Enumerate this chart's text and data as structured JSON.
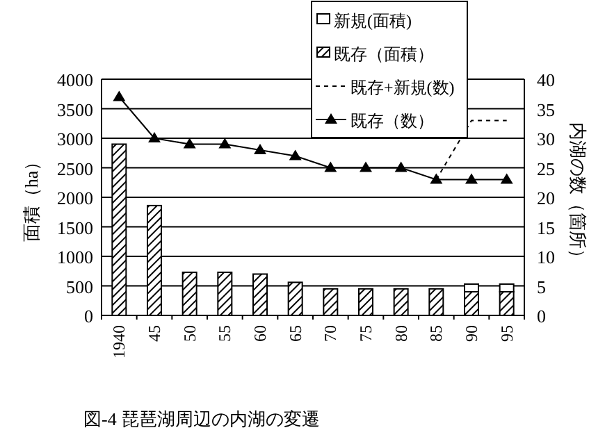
{
  "chart_data": {
    "type": "bar",
    "title": "図-4 琵琶湖周辺の内湖の変遷",
    "ylabel": "面積（ha）",
    "y2label": "内湖の数（箇所）",
    "categories": [
      "1940",
      "45",
      "50",
      "55",
      "60",
      "65",
      "70",
      "75",
      "80",
      "85",
      "90",
      "95"
    ],
    "stacked": true,
    "grid": "y",
    "legend": "top",
    "ylim": [
      0,
      4000
    ],
    "yticks": [
      0,
      500,
      1000,
      1500,
      2000,
      2500,
      3000,
      3500,
      4000
    ],
    "y2lim": [
      0,
      40
    ],
    "y2ticks": [
      0,
      5,
      10,
      15,
      20,
      25,
      30,
      35,
      40
    ],
    "series": [
      {
        "name": "既存（面積）",
        "color": "#000000",
        "values": [
          2900,
          1860,
          730,
          730,
          700,
          560,
          450,
          450,
          450,
          450,
          400,
          400
        ]
      },
      {
        "name": "新規(面積)",
        "color": "#ffffff",
        "values": [
          null,
          null,
          null,
          null,
          null,
          null,
          null,
          null,
          null,
          null,
          130,
          130
        ]
      },
      {
        "name": "既存+新規(数)",
        "type": "line",
        "axis": "y2",
        "color": "#000000",
        "line_style": "dashed",
        "marker": "none",
        "values": [
          null,
          null,
          null,
          null,
          null,
          null,
          null,
          null,
          null,
          23,
          33,
          33
        ]
      },
      {
        "name": "既存（数）",
        "type": "line",
        "axis": "y2",
        "color": "#000000",
        "line_style": "solid",
        "marker": "triangle",
        "values": [
          37,
          30,
          29,
          29,
          28,
          27,
          25,
          25,
          25,
          23,
          23,
          23
        ]
      }
    ]
  }
}
